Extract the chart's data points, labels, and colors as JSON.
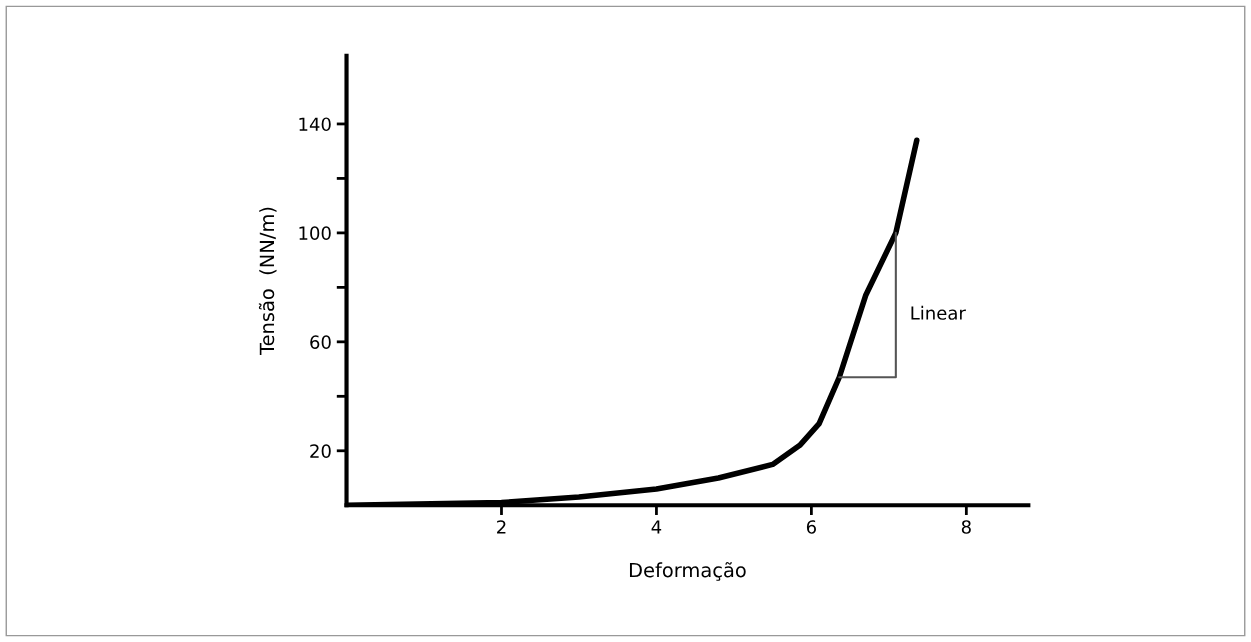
{
  "chart_data": {
    "type": "line",
    "xlabel": "Deformação",
    "ylabel": "Tensão  (NN/m)",
    "series": [
      {
        "color": "#000000",
        "x": [
          0,
          2,
          3,
          4,
          4.8,
          5.5,
          5.85,
          6.1,
          6.36,
          6.7,
          7.09,
          7.36
        ],
        "values": [
          0,
          1,
          3,
          6,
          10,
          15,
          22,
          30,
          47,
          77,
          100,
          134
        ]
      },
      {
        "color": "#555555",
        "x": [
          6.36,
          7.09,
          7.09
        ],
        "values": [
          47,
          47,
          100
        ]
      }
    ],
    "annotations": [
      {
        "text": "Linear",
        "x": 7.09,
        "y": 70
      }
    ],
    "xlim": [
      0,
      8.8
    ],
    "ylim": [
      0,
      165
    ],
    "xticks": [
      2,
      4,
      6,
      8
    ],
    "yticks": [
      20,
      {
        "value": 40,
        "label": null
      },
      60,
      {
        "value": 80,
        "label": null
      },
      100,
      {
        "value": 120,
        "label": null
      },
      140
    ],
    "grid": false,
    "legend": false
  }
}
